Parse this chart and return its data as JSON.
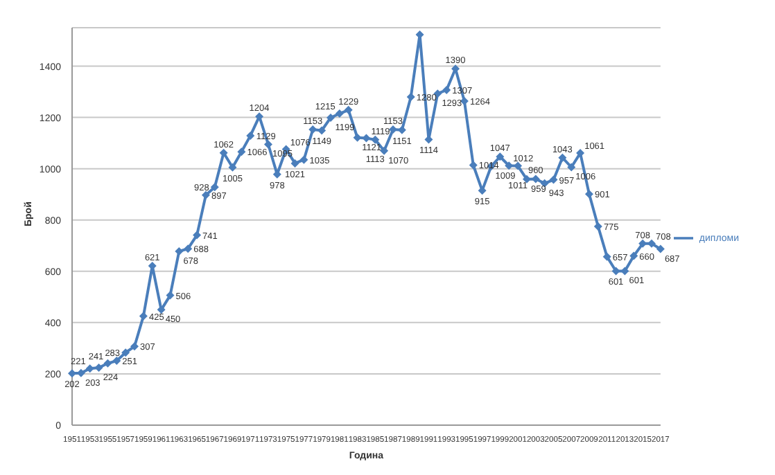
{
  "chart_data": {
    "type": "line",
    "xlabel": "Година",
    "ylabel": "Брой",
    "categories": [
      "1951",
      null,
      "1953",
      null,
      "1955",
      null,
      "1957",
      null,
      "1959",
      null,
      "1961",
      null,
      "1963",
      null,
      "1965",
      null,
      "1967",
      null,
      "1969",
      null,
      "1971",
      null,
      "1973",
      null,
      "1975",
      null,
      "1977",
      null,
      "1979",
      null,
      "1981",
      null,
      "1983",
      null,
      "1985",
      null,
      "1987",
      null,
      "1989",
      null,
      "1991",
      null,
      "1993",
      null,
      "1995",
      null,
      "1997",
      null,
      "1999",
      null,
      "2001",
      null,
      "2003",
      null,
      "2005",
      null,
      "2007",
      null,
      "2009",
      null,
      "2011",
      null,
      "2013",
      null,
      "2015",
      null,
      "2017"
    ],
    "series": [
      {
        "name": "дипломи",
        "color": "#4a7ebb",
        "values": [
          202,
          203,
          221,
          224,
          241,
          251,
          283,
          307,
          425,
          621,
          450,
          506,
          678,
          688,
          741,
          897,
          928,
          1062,
          1005,
          1066,
          1129,
          1204,
          1095,
          978,
          1076,
          1021,
          1035,
          1153,
          1149,
          1199,
          1215,
          1229,
          1121,
          1119,
          1113,
          1070,
          1153,
          1151,
          1280,
          1523,
          1114,
          1293,
          1307,
          1390,
          1264,
          1014,
          915,
          1009,
          1047,
          1012,
          1011,
          959,
          960,
          943,
          957,
          1043,
          1006,
          1061,
          901,
          775,
          657,
          601,
          601,
          660,
          708,
          708,
          687
        ],
        "value_labels": [
          "202",
          "203",
          "221",
          "224",
          "241",
          "251",
          "283",
          "307",
          "425",
          "621",
          "450",
          "506",
          "678",
          "688",
          "741",
          "897",
          "928",
          "1062",
          "1005",
          "1066",
          "1129",
          "1204",
          "1095",
          "978",
          "1076",
          "1021",
          "1035",
          "1153",
          "1149",
          "1199",
          "1215",
          "1229",
          "1121",
          "1119",
          "1113",
          "1070",
          "1153",
          "1151",
          "1280",
          null,
          "1114",
          "1293",
          "1307",
          "1390",
          "1264",
          "1014",
          "915",
          "1009",
          "1047",
          "1012",
          "1011",
          "959",
          "960",
          "943",
          "957",
          "1043",
          "1006",
          "1061",
          "901",
          "775",
          "657",
          "601",
          "601",
          "660",
          "708",
          "708",
          "687"
        ]
      }
    ],
    "ylim": [
      0,
      1550
    ],
    "yticks": [
      0,
      200,
      400,
      600,
      800,
      1000,
      1200,
      1400
    ],
    "grid": "y",
    "legend": "right",
    "marker": "diamond",
    "line_style": "solid"
  }
}
